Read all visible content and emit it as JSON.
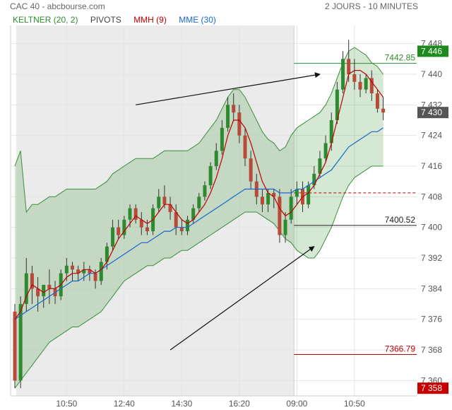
{
  "header": {
    "title": "CAC 40 - abcbourse.com",
    "period": "2 JOURS - 10 MINUTES"
  },
  "legend": [
    {
      "label": "KELTNER (20, 2)",
      "color": "#2e8b2e"
    },
    {
      "label": "PIVOTS",
      "color": "#444444"
    },
    {
      "label": "MMH (9)",
      "color": "#c00000"
    },
    {
      "label": "MME (30)",
      "color": "#1a66cc"
    }
  ],
  "chart_data": {
    "type": "candlestick",
    "y_range": [
      7356,
      7452
    ],
    "y_ticks": [
      {
        "value": 7448,
        "label": "7 448"
      },
      {
        "value": 7440,
        "label": "7 440"
      },
      {
        "value": 7432,
        "label": "7 432"
      },
      {
        "value": 7424,
        "label": "7 424"
      },
      {
        "value": 7416,
        "label": "7 416"
      },
      {
        "value": 7408,
        "label": "7 408"
      },
      {
        "value": 7400,
        "label": "7 400"
      },
      {
        "value": 7392,
        "label": "7 392"
      },
      {
        "value": 7384,
        "label": "7 384"
      },
      {
        "value": 7376,
        "label": "7 376"
      },
      {
        "value": 7368,
        "label": "7 368"
      },
      {
        "value": 7360,
        "label": "7 360"
      }
    ],
    "x_ticks": [
      {
        "bar": 9,
        "label": "10:50"
      },
      {
        "bar": 19,
        "label": "12:40"
      },
      {
        "bar": 29,
        "label": "14:30"
      },
      {
        "bar": 39,
        "label": "16:20"
      },
      {
        "bar": 49,
        "label": "09:00"
      },
      {
        "bar": 59,
        "label": "10:50"
      }
    ],
    "session_split_bar": 49,
    "pivot_levels": [
      {
        "value": 7442.85,
        "label": "7442.85",
        "color": "#2e8b2e",
        "style": "solid"
      },
      {
        "value": 7409,
        "label": "",
        "color": "#c00000",
        "style": "dashed"
      },
      {
        "value": 7400.52,
        "label": "7400.52",
        "color": "#222222",
        "style": "solid"
      },
      {
        "value": 7366.79,
        "label": "7366.79",
        "color": "#c00000",
        "style": "solid"
      }
    ],
    "badges": [
      {
        "value": 7446,
        "label": "7 446",
        "color": "#1e8a1e"
      },
      {
        "value": 7430,
        "label": "7 430",
        "color": "#555555"
      },
      {
        "value": 7358,
        "label": "7 358",
        "color": "#c80000"
      }
    ],
    "arrows": [
      {
        "from": [
          21,
          7432
        ],
        "to": [
          53,
          7440
        ]
      },
      {
        "from": [
          27,
          7368
        ],
        "to": [
          52,
          7395
        ]
      }
    ],
    "candles": [
      [
        7378,
        7380,
        7358,
        7360
      ],
      [
        7360,
        7382,
        7358,
        7380
      ],
      [
        7380,
        7392,
        7378,
        7388
      ],
      [
        7388,
        7390,
        7380,
        7384
      ],
      [
        7384,
        7387,
        7378,
        7382
      ],
      [
        7382,
        7385,
        7379,
        7385
      ],
      [
        7385,
        7389,
        7380,
        7384
      ],
      [
        7384,
        7386,
        7380,
        7382
      ],
      [
        7382,
        7389,
        7381,
        7388
      ],
      [
        7388,
        7392,
        7386,
        7390
      ],
      [
        7390,
        7391,
        7386,
        7389
      ],
      [
        7389,
        7390,
        7386,
        7388
      ],
      [
        7388,
        7391,
        7386,
        7389
      ],
      [
        7389,
        7390,
        7386,
        7388
      ],
      [
        7388,
        7389,
        7384,
        7386
      ],
      [
        7386,
        7392,
        7385,
        7391
      ],
      [
        7391,
        7396,
        7389,
        7395
      ],
      [
        7395,
        7402,
        7394,
        7400
      ],
      [
        7400,
        7402,
        7397,
        7398
      ],
      [
        7398,
        7403,
        7397,
        7402
      ],
      [
        7402,
        7406,
        7400,
        7405
      ],
      [
        7405,
        7406,
        7401,
        7402
      ],
      [
        7402,
        7404,
        7398,
        7400
      ],
      [
        7400,
        7402,
        7398,
        7399
      ],
      [
        7399,
        7406,
        7398,
        7405
      ],
      [
        7405,
        7410,
        7404,
        7408
      ],
      [
        7408,
        7411,
        7405,
        7406
      ],
      [
        7406,
        7408,
        7402,
        7404
      ],
      [
        7404,
        7406,
        7398,
        7400
      ],
      [
        7400,
        7402,
        7398,
        7399
      ],
      [
        7399,
        7403,
        7398,
        7402
      ],
      [
        7402,
        7406,
        7401,
        7405
      ],
      [
        7405,
        7409,
        7404,
        7408
      ],
      [
        7408,
        7412,
        7407,
        7411
      ],
      [
        7411,
        7417,
        7410,
        7416
      ],
      [
        7416,
        7422,
        7415,
        7420
      ],
      [
        7420,
        7428,
        7419,
        7426
      ],
      [
        7426,
        7434,
        7425,
        7432
      ],
      [
        7432,
        7435,
        7428,
        7430
      ],
      [
        7430,
        7432,
        7422,
        7424
      ],
      [
        7424,
        7426,
        7416,
        7418
      ],
      [
        7418,
        7420,
        7410,
        7412
      ],
      [
        7412,
        7414,
        7406,
        7408
      ],
      [
        7408,
        7410,
        7404,
        7406
      ],
      [
        7406,
        7410,
        7404,
        7409
      ],
      [
        7409,
        7410,
        7405,
        7408
      ],
      [
        7408,
        7410,
        7396,
        7398
      ],
      [
        7398,
        7404,
        7396,
        7402
      ],
      [
        7402,
        7410,
        7401,
        7408
      ],
      [
        7408,
        7412,
        7406,
        7410
      ],
      [
        7410,
        7412,
        7404,
        7406
      ],
      [
        7406,
        7412,
        7405,
        7411
      ],
      [
        7411,
        7416,
        7410,
        7414
      ],
      [
        7414,
        7420,
        7413,
        7418
      ],
      [
        7418,
        7424,
        7417,
        7422
      ],
      [
        7422,
        7430,
        7420,
        7428
      ],
      [
        7428,
        7438,
        7427,
        7436
      ],
      [
        7436,
        7446,
        7435,
        7444
      ],
      [
        7444,
        7449,
        7438,
        7440
      ],
      [
        7440,
        7444,
        7436,
        7438
      ],
      [
        7438,
        7440,
        7434,
        7436
      ],
      [
        7436,
        7440,
        7435,
        7439
      ],
      [
        7439,
        7441,
        7433,
        7435
      ],
      [
        7435,
        7436,
        7430,
        7431
      ],
      [
        7431,
        7434,
        7428,
        7430
      ]
    ],
    "keltner_upper": [
      7416,
      7420,
      7404,
      7406,
      7406,
      7407,
      7408,
      7408,
      7409,
      7410,
      7410,
      7410,
      7410,
      7410,
      7410,
      7411,
      7412,
      7414,
      7415,
      7416,
      7417,
      7418,
      7418,
      7418,
      7418,
      7419,
      7420,
      7420,
      7420,
      7420,
      7420,
      7421,
      7422,
      7424,
      7426,
      7428,
      7431,
      7434,
      7436,
      7436,
      7434,
      7431,
      7428,
      7425,
      7423,
      7422,
      7420,
      7421,
      7424,
      7426,
      7427,
      7428,
      7429,
      7430,
      7432,
      7435,
      7439,
      7443,
      7446,
      7447,
      7446,
      7445,
      7443,
      7442,
      7440
    ],
    "keltner_lower": [
      7358,
      7360,
      7362,
      7364,
      7366,
      7368,
      7370,
      7371,
      7372,
      7373,
      7374,
      7374,
      7375,
      7376,
      7377,
      7378,
      7380,
      7382,
      7384,
      7386,
      7387,
      7388,
      7389,
      7390,
      7390,
      7391,
      7392,
      7392,
      7393,
      7394,
      7394,
      7395,
      7396,
      7397,
      7398,
      7399,
      7400,
      7401,
      7402,
      7403,
      7404,
      7404,
      7404,
      7403,
      7402,
      7401,
      7399,
      7397,
      7396,
      7394,
      7393,
      7392,
      7392,
      7394,
      7397,
      7400,
      7404,
      7408,
      7411,
      7413,
      7414,
      7415,
      7416,
      7416,
      7416
    ],
    "mmh_9": [
      7376,
      7378,
      7382,
      7385,
      7384,
      7383,
      7384,
      7384,
      7385,
      7387,
      7388,
      7388,
      7389,
      7389,
      7388,
      7389,
      7391,
      7394,
      7397,
      7399,
      7401,
      7403,
      7402,
      7401,
      7402,
      7404,
      7406,
      7406,
      7404,
      7402,
      7401,
      7402,
      7404,
      7406,
      7409,
      7413,
      7418,
      7424,
      7428,
      7428,
      7426,
      7422,
      7417,
      7412,
      7409,
      7408,
      7405,
      7403,
      7404,
      7406,
      7408,
      7409,
      7411,
      7414,
      7417,
      7422,
      7428,
      7434,
      7440,
      7441,
      7441,
      7440,
      7438,
      7436,
      7434
    ],
    "mme_30": [
      7376,
      7377,
      7378,
      7379,
      7380,
      7381,
      7382,
      7383,
      7384,
      7385,
      7386,
      7386,
      7387,
      7388,
      7388,
      7389,
      7390,
      7391,
      7392,
      7393,
      7394,
      7395,
      7396,
      7396,
      7397,
      7398,
      7399,
      7399,
      7400,
      7400,
      7400,
      7401,
      7402,
      7403,
      7404,
      7405,
      7406,
      7407,
      7408,
      7409,
      7410,
      7410,
      7410,
      7410,
      7410,
      7410,
      7409,
      7409,
      7409,
      7410,
      7410,
      7411,
      7412,
      7413,
      7414,
      7415,
      7417,
      7419,
      7421,
      7422,
      7423,
      7424,
      7425,
      7425,
      7426
    ]
  }
}
